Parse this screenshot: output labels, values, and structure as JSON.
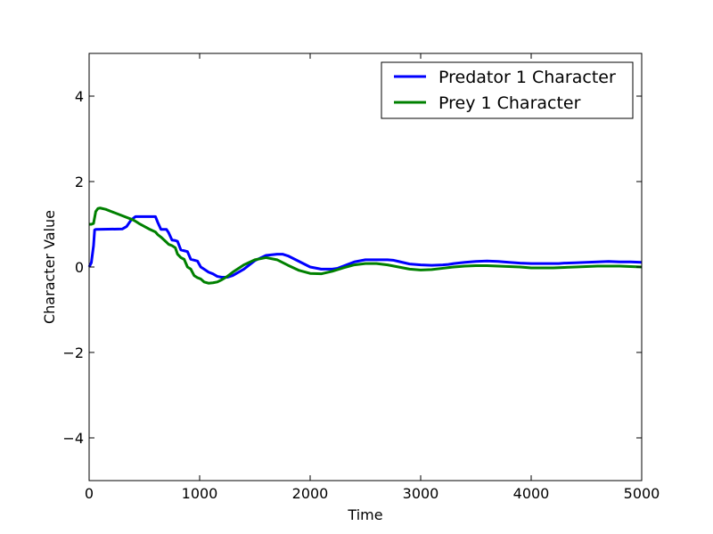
{
  "chart_data": {
    "type": "line",
    "xlabel": "Time",
    "ylabel": "Character Value",
    "xlim": [
      0,
      5000
    ],
    "ylim": [
      -5,
      5
    ],
    "xticks": [
      0,
      1000,
      2000,
      3000,
      4000,
      5000
    ],
    "xtick_labels": [
      "0",
      "1000",
      "2000",
      "3000",
      "4000",
      "5000"
    ],
    "yticks": [
      -4,
      -2,
      0,
      2,
      4
    ],
    "ytick_labels": [
      "−4",
      "−2",
      "0",
      "2",
      "4"
    ],
    "grid": false,
    "legend_position": "top-right",
    "series": [
      {
        "name": "Predator 1 Character",
        "color": "#0000ff",
        "x": [
          0,
          20,
          40,
          50,
          60,
          300,
          340,
          380,
          420,
          600,
          620,
          650,
          700,
          720,
          750,
          780,
          800,
          830,
          860,
          890,
          920,
          950,
          980,
          1010,
          1040,
          1080,
          1120,
          1160,
          1200,
          1250,
          1300,
          1400,
          1500,
          1600,
          1700,
          1750,
          1800,
          1900,
          2000,
          2100,
          2200,
          2250,
          2300,
          2400,
          2500,
          2600,
          2700,
          2750,
          2800,
          2900,
          3000,
          3100,
          3200,
          3250,
          3300,
          3400,
          3500,
          3600,
          3700,
          3750,
          3800,
          3900,
          4000,
          4100,
          4200,
          4250,
          4300,
          4400,
          4500,
          4600,
          4700,
          4800,
          4900,
          5000
        ],
        "y": [
          0,
          0.1,
          0.5,
          0.87,
          0.88,
          0.89,
          0.95,
          1.1,
          1.18,
          1.18,
          1.05,
          0.88,
          0.88,
          0.8,
          0.63,
          0.62,
          0.6,
          0.4,
          0.38,
          0.36,
          0.18,
          0.16,
          0.14,
          0.0,
          -0.05,
          -0.12,
          -0.16,
          -0.22,
          -0.24,
          -0.24,
          -0.2,
          -0.05,
          0.15,
          0.27,
          0.3,
          0.3,
          0.26,
          0.13,
          0.0,
          -0.05,
          -0.05,
          -0.03,
          0.02,
          0.12,
          0.17,
          0.17,
          0.17,
          0.16,
          0.13,
          0.07,
          0.05,
          0.04,
          0.05,
          0.06,
          0.08,
          0.11,
          0.13,
          0.14,
          0.13,
          0.12,
          0.11,
          0.09,
          0.08,
          0.08,
          0.08,
          0.08,
          0.09,
          0.1,
          0.11,
          0.12,
          0.13,
          0.12,
          0.12,
          0.11
        ]
      },
      {
        "name": "Prey 1 Character",
        "color": "#008000",
        "x": [
          0,
          20,
          40,
          60,
          80,
          100,
          150,
          200,
          300,
          400,
          420,
          450,
          500,
          550,
          600,
          620,
          650,
          700,
          720,
          750,
          780,
          800,
          830,
          860,
          890,
          920,
          950,
          980,
          1010,
          1040,
          1080,
          1120,
          1160,
          1200,
          1250,
          1300,
          1400,
          1500,
          1600,
          1700,
          1800,
          1900,
          2000,
          2100,
          2200,
          2300,
          2400,
          2500,
          2600,
          2700,
          2800,
          2900,
          3000,
          3100,
          3200,
          3300,
          3400,
          3500,
          3600,
          3700,
          3800,
          3900,
          4000,
          4100,
          4200,
          4300,
          4400,
          4500,
          4600,
          4700,
          4800,
          4900,
          5000
        ],
        "y": [
          1.0,
          1.0,
          1.02,
          1.3,
          1.37,
          1.38,
          1.35,
          1.3,
          1.2,
          1.1,
          1.07,
          1.02,
          0.95,
          0.88,
          0.82,
          0.76,
          0.7,
          0.58,
          0.53,
          0.5,
          0.45,
          0.3,
          0.22,
          0.18,
          0.0,
          -0.05,
          -0.2,
          -0.25,
          -0.28,
          -0.35,
          -0.38,
          -0.37,
          -0.35,
          -0.3,
          -0.22,
          -0.12,
          0.05,
          0.17,
          0.22,
          0.17,
          0.04,
          -0.08,
          -0.15,
          -0.16,
          -0.1,
          -0.02,
          0.05,
          0.08,
          0.08,
          0.05,
          0.0,
          -0.05,
          -0.07,
          -0.06,
          -0.03,
          0.0,
          0.02,
          0.03,
          0.03,
          0.02,
          0.01,
          0.0,
          -0.02,
          -0.02,
          -0.02,
          -0.01,
          0.0,
          0.01,
          0.02,
          0.02,
          0.02,
          0.01,
          0.0
        ]
      }
    ]
  }
}
